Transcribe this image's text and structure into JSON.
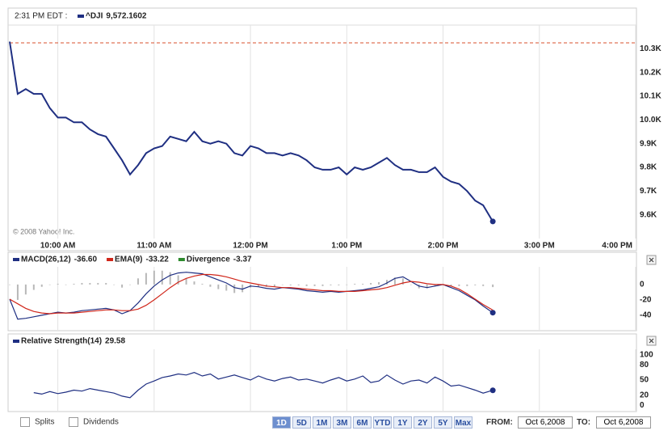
{
  "header": {
    "time": "2:31 PM EDT :",
    "copyright": "© 2008 Yahoo! Inc."
  },
  "chart_data": [
    {
      "type": "line",
      "x": [
        570,
        575,
        580,
        585,
        590,
        595,
        600,
        605,
        610,
        615,
        620,
        625,
        630,
        635,
        640,
        645,
        650,
        655,
        660,
        665,
        670,
        675,
        680,
        685,
        690,
        695,
        700,
        705,
        710,
        715,
        720,
        725,
        730,
        735,
        740,
        745,
        750,
        755,
        760,
        765,
        770,
        775,
        780,
        785,
        790,
        795,
        800,
        805,
        810,
        815,
        820,
        825,
        830,
        835,
        840,
        845,
        850,
        855,
        860,
        865,
        871
      ],
      "xlim": [
        570,
        960
      ],
      "xticks": [
        {
          "value": 600,
          "label": "10:00 AM"
        },
        {
          "value": 660,
          "label": "11:00 AM"
        },
        {
          "value": 720,
          "label": "12:00 PM"
        },
        {
          "value": 780,
          "label": "1:00 PM"
        },
        {
          "value": 840,
          "label": "2:00 PM"
        },
        {
          "value": 900,
          "label": "3:00 PM"
        },
        {
          "value": 960,
          "label": "4:00 PM"
        }
      ],
      "ylim": [
        9500,
        10400
      ],
      "yticks": [
        {
          "value": 9600,
          "label": "9.6K"
        },
        {
          "value": 9700,
          "label": "9.7K"
        },
        {
          "value": 9800,
          "label": "9.8K"
        },
        {
          "value": 9900,
          "label": "9.9K"
        },
        {
          "value": 10000,
          "label": "10.0K"
        },
        {
          "value": 10100,
          "label": "10.1K"
        },
        {
          "value": 10200,
          "label": "10.2K"
        },
        {
          "value": 10300,
          "label": "10.3K"
        }
      ],
      "reference_line": 10325,
      "reference_color": "#d9502e",
      "series": [
        {
          "name": "^DJI",
          "color": "#1f2f82",
          "legend_value": "9,572.1602",
          "values": [
            10330,
            10110,
            10130,
            10110,
            10110,
            10050,
            10010,
            10010,
            9990,
            9990,
            9960,
            9940,
            9930,
            9880,
            9830,
            9770,
            9810,
            9860,
            9880,
            9890,
            9930,
            9920,
            9910,
            9950,
            9910,
            9900,
            9910,
            9900,
            9860,
            9850,
            9890,
            9880,
            9860,
            9860,
            9850,
            9860,
            9850,
            9830,
            9800,
            9790,
            9790,
            9800,
            9770,
            9800,
            9790,
            9800,
            9820,
            9840,
            9810,
            9790,
            9790,
            9780,
            9780,
            9800,
            9760,
            9740,
            9730,
            9700,
            9660,
            9640,
            9572
          ]
        }
      ]
    },
    {
      "type": "line",
      "ylim": [
        -59,
        23
      ],
      "yticks": [
        -40,
        -20,
        0
      ],
      "series": [
        {
          "name": "MACD(26,12)",
          "color": "#1f2f82",
          "legend_value": "-36.60",
          "values": [
            -19,
            -45,
            -44,
            -42,
            -40,
            -38,
            -36,
            -37,
            -36,
            -34,
            -33,
            -32,
            -31,
            -33,
            -38,
            -34,
            -24,
            -12,
            -2,
            6,
            12,
            15,
            16,
            15,
            14,
            10,
            6,
            2,
            -4,
            -6,
            -2,
            -3,
            -5,
            -6,
            -4,
            -5,
            -6,
            -8,
            -9,
            -10,
            -9,
            -10,
            -9,
            -8,
            -7,
            -5,
            -3,
            2,
            8,
            10,
            4,
            -2,
            -4,
            -2,
            0,
            -4,
            -8,
            -14,
            -20,
            -28,
            -36.6
          ]
        },
        {
          "name": "EMA(9)",
          "color": "#d0261a",
          "legend_value": "-33.22",
          "values": [
            -19,
            -25,
            -31,
            -35,
            -37,
            -38,
            -37,
            -37,
            -37,
            -36,
            -35,
            -34,
            -33,
            -33,
            -34,
            -34,
            -32,
            -27,
            -20,
            -12,
            -4,
            3,
            8,
            11,
            13,
            13,
            12,
            10,
            7,
            4,
            2,
            0,
            -2,
            -3,
            -4,
            -4,
            -5,
            -6,
            -7,
            -8,
            -8,
            -9,
            -9,
            -9,
            -8,
            -7,
            -6,
            -4,
            -1,
            2,
            4,
            3,
            1,
            0,
            0,
            -2,
            -6,
            -12,
            -19,
            -26,
            -33.22
          ]
        },
        {
          "name": "Divergence",
          "color": "#2e8b2e",
          "bar_color": "#b8b8b8",
          "legend_value": "-3.37",
          "values": [
            0,
            -20,
            -13,
            -7,
            -3,
            0,
            1,
            0,
            1,
            2,
            2,
            2,
            2,
            0,
            -4,
            0,
            8,
            15,
            18,
            18,
            16,
            12,
            8,
            4,
            1,
            -3,
            -6,
            -8,
            -11,
            -10,
            -4,
            -3,
            -3,
            -3,
            0,
            -1,
            -1,
            -2,
            -2,
            -2,
            -1,
            -1,
            0,
            1,
            1,
            2,
            3,
            6,
            9,
            8,
            0,
            -5,
            -5,
            -2,
            0,
            -2,
            -2,
            -2,
            -1,
            -2,
            -3.37
          ]
        }
      ]
    },
    {
      "type": "line",
      "ylim": [
        -11,
        111
      ],
      "yticks": [
        0,
        20,
        50,
        80,
        100
      ],
      "series": [
        {
          "name": "Relative Strength(14)",
          "color": "#1f2f82",
          "legend_value": "29.58",
          "values": [
            null,
            null,
            null,
            25,
            22,
            27,
            23,
            26,
            30,
            28,
            33,
            30,
            27,
            24,
            18,
            15,
            30,
            42,
            48,
            55,
            58,
            62,
            60,
            65,
            58,
            62,
            52,
            56,
            60,
            55,
            50,
            58,
            52,
            48,
            53,
            56,
            50,
            52,
            48,
            44,
            50,
            55,
            48,
            52,
            58,
            45,
            48,
            60,
            50,
            42,
            48,
            50,
            44,
            56,
            48,
            38,
            40,
            35,
            30,
            24,
            29.58
          ]
        }
      ]
    }
  ],
  "controls": {
    "checkboxes": [
      "Splits",
      "Dividends"
    ],
    "ranges": [
      "1D",
      "5D",
      "1M",
      "3M",
      "6M",
      "YTD",
      "1Y",
      "2Y",
      "5Y",
      "Max"
    ],
    "active_range": 0,
    "from_label": "FROM:",
    "from": "Oct 6,2008",
    "to_label": "TO:",
    "to": "Oct 6,2008"
  }
}
